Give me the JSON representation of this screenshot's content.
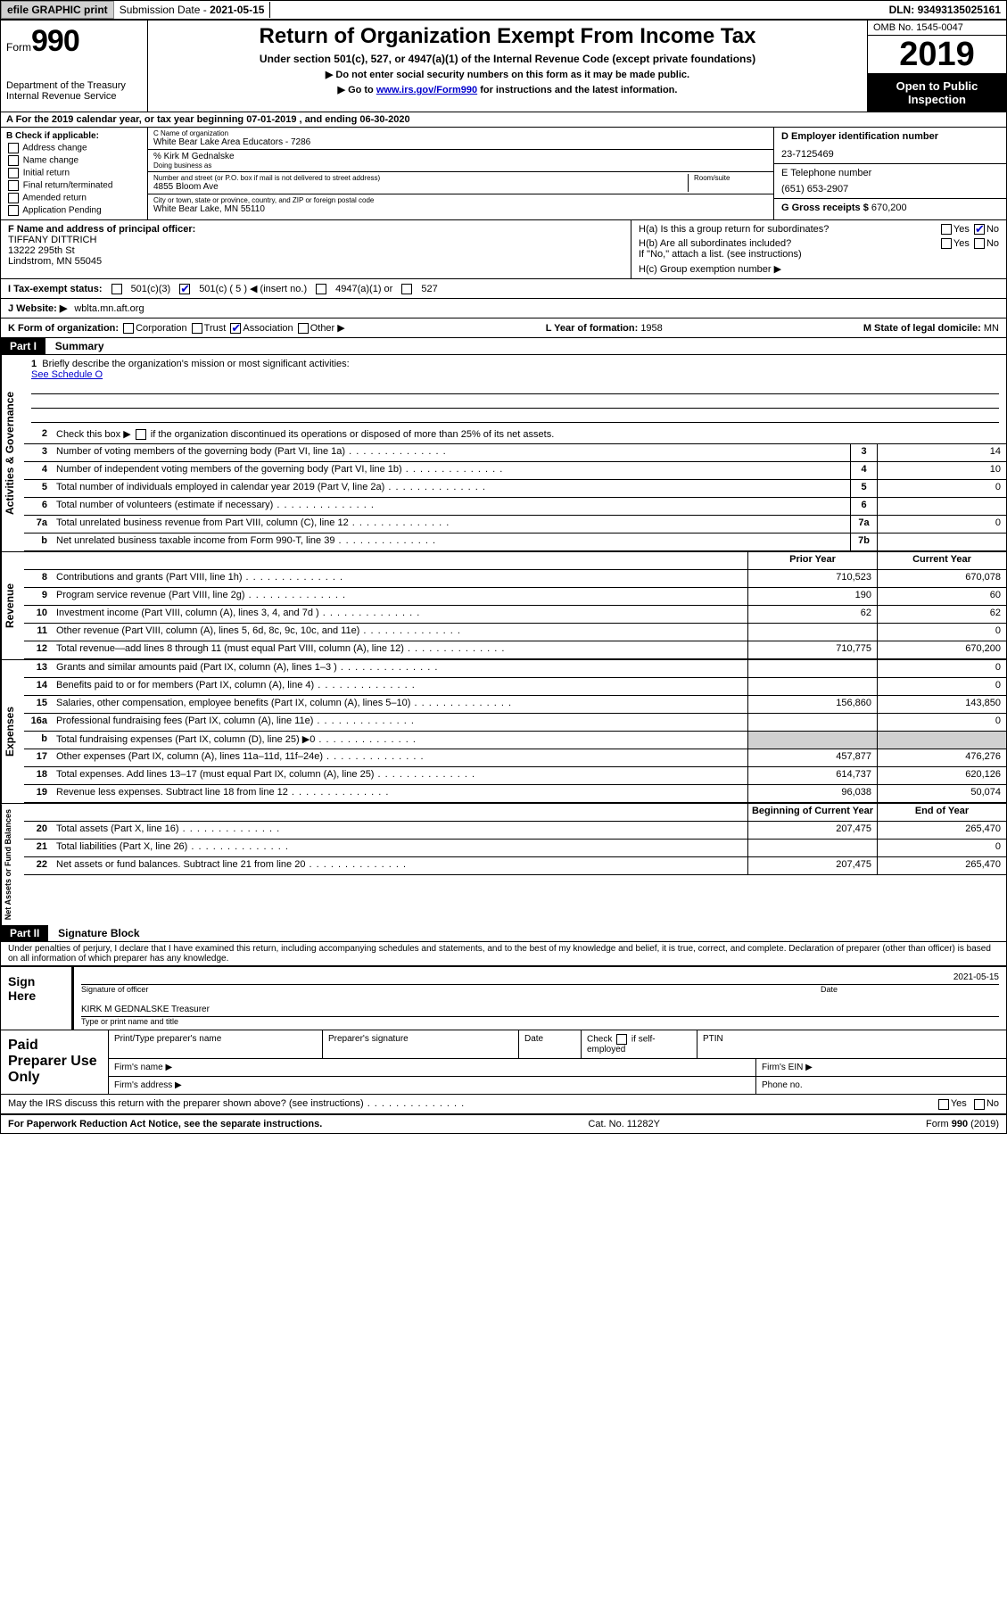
{
  "topbar": {
    "efile": "efile GRAPHIC print",
    "submission_label": "Submission Date - ",
    "submission_date": "2021-05-15",
    "dln_label": "DLN: ",
    "dln": "93493135025161"
  },
  "header": {
    "form_word": "Form",
    "form_num": "990",
    "dept1": "Department of the Treasury",
    "dept2": "Internal Revenue Service",
    "title": "Return of Organization Exempt From Income Tax",
    "subtitle": "Under section 501(c), 527, or 4947(a)(1) of the Internal Revenue Code (except private foundations)",
    "note1": "▶ Do not enter social security numbers on this form as it may be made public.",
    "note2_pre": "▶ Go to ",
    "note2_link": "www.irs.gov/Form990",
    "note2_post": " for instructions and the latest information.",
    "omb": "OMB No. 1545-0047",
    "year": "2019",
    "inspect": "Open to Public Inspection"
  },
  "rowA": "A For the 2019 calendar year, or tax year beginning 07-01-2019    , and ending 06-30-2020",
  "colB": {
    "label": "B Check if applicable:",
    "opts": [
      "Address change",
      "Name change",
      "Initial return",
      "Final return/terminated",
      "Amended return",
      "Application Pending"
    ]
  },
  "colC": {
    "name_lbl": "C Name of organization",
    "name": "White Bear Lake Area Educators - 7286",
    "care_of": "% Kirk M Gednalske",
    "dba_lbl": "Doing business as",
    "addr_lbl": "Number and street (or P.O. box if mail is not delivered to street address)",
    "room_lbl": "Room/suite",
    "addr": "4855 Bloom Ave",
    "city_lbl": "City or town, state or province, country, and ZIP or foreign postal code",
    "city": "White Bear Lake, MN  55110"
  },
  "colD": {
    "ein_lbl": "D Employer identification number",
    "ein": "23-7125469",
    "phone_lbl": "E Telephone number",
    "phone": "(651) 653-2907",
    "gross_lbl": "G Gross receipts $ ",
    "gross": "670,200"
  },
  "rowF": {
    "lbl": "F  Name and address of principal officer:",
    "name": "TIFFANY DITTRICH",
    "addr1": "13222 295th St",
    "addr2": "Lindstrom, MN  55045"
  },
  "rowH": {
    "ha": "H(a)  Is this a group return for subordinates?",
    "hb": "H(b)  Are all subordinates included?",
    "hb_note": "If \"No,\" attach a list. (see instructions)",
    "hc": "H(c)  Group exemption number ▶",
    "yes": "Yes",
    "no": "No"
  },
  "rowI": {
    "lbl": "I    Tax-exempt status:",
    "o1": "501(c)(3)",
    "o2": "501(c) ( 5 ) ◀ (insert no.)",
    "o3": "4947(a)(1) or",
    "o4": "527"
  },
  "rowJ": {
    "lbl": "J    Website: ▶ ",
    "val": "wblta.mn.aft.org"
  },
  "rowK": {
    "lbl": "K Form of organization:",
    "o1": "Corporation",
    "o2": "Trust",
    "o3": "Association",
    "o4": "Other ▶",
    "l_lbl": "L Year of formation: ",
    "l_val": "1958",
    "m_lbl": "M State of legal domicile: ",
    "m_val": "MN"
  },
  "part1": {
    "num": "Part I",
    "title": "Summary"
  },
  "summary": {
    "l1": "Briefly describe the organization's mission or most significant activities:",
    "l1_val": "See Schedule O",
    "l2": "Check this box ▶          if the organization discontinued its operations or disposed of more than 25% of its net assets.",
    "lines": [
      {
        "n": "3",
        "d": "Number of voting members of the governing body (Part VI, line 1a)",
        "b": "3",
        "v": "14"
      },
      {
        "n": "4",
        "d": "Number of independent voting members of the governing body (Part VI, line 1b)",
        "b": "4",
        "v": "10"
      },
      {
        "n": "5",
        "d": "Total number of individuals employed in calendar year 2019 (Part V, line 2a)",
        "b": "5",
        "v": "0"
      },
      {
        "n": "6",
        "d": "Total number of volunteers (estimate if necessary)",
        "b": "6",
        "v": ""
      },
      {
        "n": "7a",
        "d": "Total unrelated business revenue from Part VIII, column (C), line 12",
        "b": "7a",
        "v": "0"
      },
      {
        "n": "b",
        "d": "Net unrelated business taxable income from Form 990-T, line 39",
        "b": "7b",
        "v": ""
      }
    ],
    "col_prior": "Prior Year",
    "col_current": "Current Year",
    "col_begin": "Beginning of Current Year",
    "col_end": "End of Year"
  },
  "revenue": [
    {
      "n": "8",
      "d": "Contributions and grants (Part VIII, line 1h)",
      "p": "710,523",
      "c": "670,078"
    },
    {
      "n": "9",
      "d": "Program service revenue (Part VIII, line 2g)",
      "p": "190",
      "c": "60"
    },
    {
      "n": "10",
      "d": "Investment income (Part VIII, column (A), lines 3, 4, and 7d )",
      "p": "62",
      "c": "62"
    },
    {
      "n": "11",
      "d": "Other revenue (Part VIII, column (A), lines 5, 6d, 8c, 9c, 10c, and 11e)",
      "p": "",
      "c": "0"
    },
    {
      "n": "12",
      "d": "Total revenue—add lines 8 through 11 (must equal Part VIII, column (A), line 12)",
      "p": "710,775",
      "c": "670,200"
    }
  ],
  "expenses": [
    {
      "n": "13",
      "d": "Grants and similar amounts paid (Part IX, column (A), lines 1–3 )",
      "p": "",
      "c": "0"
    },
    {
      "n": "14",
      "d": "Benefits paid to or for members (Part IX, column (A), line 4)",
      "p": "",
      "c": "0"
    },
    {
      "n": "15",
      "d": "Salaries, other compensation, employee benefits (Part IX, column (A), lines 5–10)",
      "p": "156,860",
      "c": "143,850"
    },
    {
      "n": "16a",
      "d": "Professional fundraising fees (Part IX, column (A), line 11e)",
      "p": "",
      "c": "0"
    },
    {
      "n": "b",
      "d": "Total fundraising expenses (Part IX, column (D), line 25) ▶0",
      "p": "shade",
      "c": "shade"
    },
    {
      "n": "17",
      "d": "Other expenses (Part IX, column (A), lines 11a–11d, 11f–24e)",
      "p": "457,877",
      "c": "476,276"
    },
    {
      "n": "18",
      "d": "Total expenses. Add lines 13–17 (must equal Part IX, column (A), line 25)",
      "p": "614,737",
      "c": "620,126"
    },
    {
      "n": "19",
      "d": "Revenue less expenses. Subtract line 18 from line 12",
      "p": "96,038",
      "c": "50,074"
    }
  ],
  "netassets": [
    {
      "n": "20",
      "d": "Total assets (Part X, line 16)",
      "p": "207,475",
      "c": "265,470"
    },
    {
      "n": "21",
      "d": "Total liabilities (Part X, line 26)",
      "p": "",
      "c": "0"
    },
    {
      "n": "22",
      "d": "Net assets or fund balances. Subtract line 21 from line 20",
      "p": "207,475",
      "c": "265,470"
    }
  ],
  "side_labels": {
    "gov": "Activities & Governance",
    "rev": "Revenue",
    "exp": "Expenses",
    "net": "Net Assets or Fund Balances"
  },
  "part2": {
    "num": "Part II",
    "title": "Signature Block"
  },
  "penalty": "Under penalties of perjury, I declare that I have examined this return, including accompanying schedules and statements, and to the best of my knowledge and belief, it is true, correct, and complete. Declaration of preparer (other than officer) is based on all information of which preparer has any knowledge.",
  "sign": {
    "here": "Sign Here",
    "sig_lbl": "Signature of officer",
    "date_lbl": "Date",
    "date": "2021-05-15",
    "name": "KIRK M GEDNALSKE Treasurer",
    "name_lbl": "Type or print name and title"
  },
  "prep": {
    "title": "Paid Preparer Use Only",
    "h1": "Print/Type preparer's name",
    "h2": "Preparer's signature",
    "h3": "Date",
    "h4_pre": "Check",
    "h4_post": "if self-employed",
    "h5": "PTIN",
    "firm_name": "Firm's name    ▶",
    "firm_ein": "Firm's EIN ▶",
    "firm_addr": "Firm's address ▶",
    "phone": "Phone no."
  },
  "discuss": "May the IRS discuss this return with the preparer shown above? (see instructions)",
  "footer": {
    "left": "For Paperwork Reduction Act Notice, see the separate instructions.",
    "mid": "Cat. No. 11282Y",
    "right_pre": "Form ",
    "right_bold": "990",
    "right_post": " (2019)"
  }
}
